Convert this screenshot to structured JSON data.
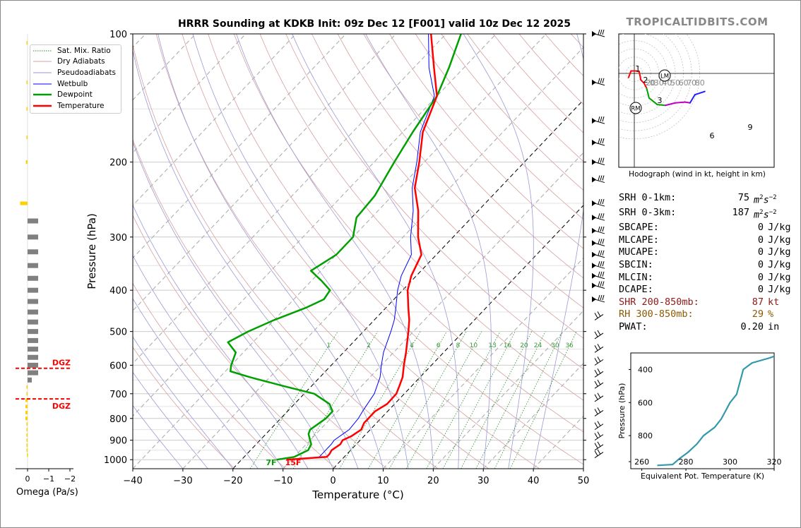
{
  "title": "HRRR Sounding at KDKB Init: 09z Dec 12 [F001] valid 10z Dec 12 2025",
  "brand": "TROPICALTIDBITS.COM",
  "stats": [
    {
      "label": "SRH 0-1km:",
      "value": "75",
      "unit": "m2s-2",
      "color": "#000"
    },
    {
      "label": "SRH 0-3km:",
      "value": "187",
      "unit": "m2s-2",
      "color": "#000"
    },
    {
      "label": "SBCAPE:",
      "value": "0",
      "unit": "J/kg",
      "color": "#000"
    },
    {
      "label": "MLCAPE:",
      "value": "0",
      "unit": "J/kg",
      "color": "#000"
    },
    {
      "label": "MUCAPE:",
      "value": "0",
      "unit": "J/kg",
      "color": "#000"
    },
    {
      "label": "SBCIN:",
      "value": "0",
      "unit": "J/kg",
      "color": "#000"
    },
    {
      "label": "MLCIN:",
      "value": "0",
      "unit": "J/kg",
      "color": "#000"
    },
    {
      "label": "DCAPE:",
      "value": "0",
      "unit": "J/kg",
      "color": "#000"
    },
    {
      "label": "SHR 200-850mb:",
      "value": "87",
      "unit": "kt",
      "color": "#8b1a1a"
    },
    {
      "label": "RH 300-850mb:",
      "value": "29",
      "unit": "%",
      "color": "#8b5a00"
    },
    {
      "label": "PWAT:",
      "value": "0.20",
      "unit": "in",
      "color": "#000"
    }
  ],
  "hodograph": {
    "caption": "Hodograph (wind in kt, height in km)",
    "ring_labels": [
      "0",
      "20",
      "30",
      "40",
      "50",
      "60",
      "70",
      "80"
    ],
    "height_labels": [
      "1",
      "2",
      "3",
      "6",
      "9"
    ],
    "markers": [
      "LM",
      "RM"
    ]
  },
  "omega": {
    "xlabel": "Omega (Pa/s)",
    "ticks": [
      "0",
      "−1",
      "−2"
    ],
    "dgz_label": "DGZ"
  },
  "chart_data": [
    {
      "type": "line",
      "name": "skew-t",
      "xlabel": "Temperature (°C)",
      "ylabel": "Pressure (hPa)",
      "xlim": [
        -40,
        50
      ],
      "ylim": [
        1050,
        100
      ],
      "y_log": true,
      "x_ticks": [
        "−40",
        "−30",
        "−20",
        "−10",
        "0",
        "10",
        "20",
        "30",
        "40",
        "50"
      ],
      "x_tick_values": [
        -40,
        -30,
        -20,
        -10,
        0,
        10,
        20,
        30,
        40,
        50
      ],
      "y_ticks": [
        "100",
        "200",
        "300",
        "400",
        "500",
        "600",
        "700",
        "800",
        "900",
        "1000"
      ],
      "y_tick_values": [
        100,
        200,
        300,
        400,
        500,
        600,
        700,
        800,
        900,
        1000
      ],
      "legend": [
        "Sat. Mix. Ratio",
        "Dry Adiabats",
        "Pseudoadiabats",
        "Wetbulb",
        "Dewpoint",
        "Temperature"
      ],
      "legend_placement": "top-left",
      "mixing_ratio_labels": [
        "1",
        "2",
        "4",
        "6",
        "8",
        "10",
        "13",
        "16",
        "20",
        "24",
        "30",
        "36"
      ],
      "surface_labels": {
        "dewpoint": "7F",
        "temperature": "15F"
      },
      "colors": {
        "temperature": "#ff0000",
        "dewpoint": "#00a000",
        "wetbulb": "#0000ff",
        "mixratio": "#2a8a2a",
        "dry": "#d6a0a0",
        "pseudo": "#9a9ad6",
        "isotherm_dash": "#000"
      },
      "series": [
        {
          "name": "Temperature",
          "points": [
            [
              1000,
              -11
            ],
            [
              985,
              -3.5
            ],
            [
              970,
              -3.5
            ],
            [
              950,
              -3.8
            ],
            [
              920,
              -3.2
            ],
            [
              900,
              -3.5
            ],
            [
              880,
              -2.5
            ],
            [
              850,
              -1.8
            ],
            [
              820,
              -2.5
            ],
            [
              800,
              -2.5
            ],
            [
              770,
              -2.5
            ],
            [
              740,
              -1.5
            ],
            [
              700,
              -1.6
            ],
            [
              670,
              -2.5
            ],
            [
              640,
              -3.5
            ],
            [
              600,
              -5.5
            ],
            [
              560,
              -7.5
            ],
            [
              500,
              -11
            ],
            [
              470,
              -13
            ],
            [
              440,
              -15.5
            ],
            [
              400,
              -19
            ],
            [
              370,
              -21
            ],
            [
              330,
              -23
            ],
            [
              300,
              -27
            ],
            [
              260,
              -32
            ],
            [
              230,
              -37
            ],
            [
              200,
              -41
            ],
            [
              170,
              -46
            ],
            [
              140,
              -50
            ],
            [
              120,
              -56
            ],
            [
              100,
              -63
            ]
          ]
        },
        {
          "name": "Wetbulb",
          "points": [
            [
              1000,
              -11
            ],
            [
              985,
              -5
            ],
            [
              950,
              -5
            ],
            [
              920,
              -5
            ],
            [
              900,
              -5.2
            ],
            [
              870,
              -4.6
            ],
            [
              850,
              -4.2
            ],
            [
              800,
              -4.5
            ],
            [
              770,
              -5
            ],
            [
              700,
              -6
            ],
            [
              640,
              -8
            ],
            [
              600,
              -10
            ],
            [
              560,
              -12
            ],
            [
              500,
              -14.5
            ],
            [
              470,
              -16
            ],
            [
              440,
              -18
            ],
            [
              400,
              -21
            ],
            [
              370,
              -23
            ],
            [
              330,
              -25
            ],
            [
              300,
              -28.5
            ],
            [
              260,
              -33
            ],
            [
              230,
              -37.5
            ],
            [
              200,
              -41.5
            ],
            [
              170,
              -46.5
            ],
            [
              140,
              -50.5
            ],
            [
              120,
              -57
            ],
            [
              100,
              -63.5
            ]
          ]
        },
        {
          "name": "Dewpoint",
          "points": [
            [
              1000,
              -13
            ],
            [
              985,
              -10
            ],
            [
              950,
              -8.5
            ],
            [
              920,
              -9
            ],
            [
              900,
              -10
            ],
            [
              870,
              -11.5
            ],
            [
              850,
              -12
            ],
            [
              800,
              -11
            ],
            [
              770,
              -11
            ],
            [
              740,
              -13
            ],
            [
              700,
              -18
            ],
            [
              670,
              -26
            ],
            [
              640,
              -34
            ],
            [
              620,
              -39
            ],
            [
              600,
              -40
            ],
            [
              560,
              -41.5
            ],
            [
              530,
              -45
            ],
            [
              500,
              -43
            ],
            [
              470,
              -40
            ],
            [
              440,
              -36
            ],
            [
              420,
              -34
            ],
            [
              400,
              -34.5
            ],
            [
              380,
              -38
            ],
            [
              360,
              -42
            ],
            [
              330,
              -40
            ],
            [
              300,
              -40
            ],
            [
              270,
              -43
            ],
            [
              240,
              -43.5
            ],
            [
              200,
              -46
            ],
            [
              170,
              -48
            ],
            [
              140,
              -50
            ],
            [
              120,
              -53
            ],
            [
              100,
              -57
            ]
          ]
        }
      ]
    },
    {
      "type": "bar",
      "name": "omega-profile",
      "xlabel": "Omega (Pa/s)",
      "xlim": [
        0.5,
        -2
      ],
      "bars": [
        {
          "p": 105,
          "omega": 0.05
        },
        {
          "p": 130,
          "omega": 0.05
        },
        {
          "p": 150,
          "omega": 0.05
        },
        {
          "p": 175,
          "omega": 0.05
        },
        {
          "p": 200,
          "omega": 0.08
        },
        {
          "p": 250,
          "omega": 0.35
        },
        {
          "p": 275,
          "omega": -0.5
        },
        {
          "p": 300,
          "omega": -0.5
        },
        {
          "p": 325,
          "omega": -0.5
        },
        {
          "p": 350,
          "omega": -0.5
        },
        {
          "p": 375,
          "omega": -0.5
        },
        {
          "p": 400,
          "omega": -0.5
        },
        {
          "p": 425,
          "omega": -0.5
        },
        {
          "p": 450,
          "omega": -0.5
        },
        {
          "p": 475,
          "omega": -0.5
        },
        {
          "p": 500,
          "omega": -0.5
        },
        {
          "p": 525,
          "omega": -0.5
        },
        {
          "p": 550,
          "omega": -0.5
        },
        {
          "p": 575,
          "omega": -0.5
        },
        {
          "p": 600,
          "omega": -0.5
        },
        {
          "p": 625,
          "omega": -0.5
        },
        {
          "p": 650,
          "omega": -0.2
        },
        {
          "p": 675,
          "omega": 0.05
        },
        {
          "p": 700,
          "omega": 0.05
        },
        {
          "p": 725,
          "omega": 0.1
        },
        {
          "p": 750,
          "omega": 0.1
        },
        {
          "p": 775,
          "omega": 0.1
        },
        {
          "p": 800,
          "omega": 0.1
        },
        {
          "p": 825,
          "omega": 0.05
        },
        {
          "p": 850,
          "omega": 0.05
        },
        {
          "p": 875,
          "omega": 0.05
        },
        {
          "p": 900,
          "omega": 0.05
        },
        {
          "p": 925,
          "omega": 0.05
        },
        {
          "p": 950,
          "omega": 0.05
        },
        {
          "p": 975,
          "omega": 0.03
        }
      ],
      "dgz": [
        {
          "p": 610,
          "label": "DGZ"
        },
        {
          "p": 720,
          "label": "DGZ"
        }
      ]
    },
    {
      "type": "line",
      "name": "equivalent-potential-temperature",
      "xlabel": "Equivalent Pot. Temperature (K)",
      "ylabel": "Pressure (hPa)",
      "xlim": [
        255,
        320
      ],
      "ylim": [
        1000,
        300
      ],
      "x_ticks": [
        "260",
        "280",
        "300",
        "320"
      ],
      "y_ticks": [
        "400",
        "600",
        "800"
      ],
      "points": [
        [
          980,
          267
        ],
        [
          975,
          274
        ],
        [
          940,
          277
        ],
        [
          900,
          281
        ],
        [
          850,
          285
        ],
        [
          800,
          288
        ],
        [
          750,
          293
        ],
        [
          700,
          296
        ],
        [
          650,
          298
        ],
        [
          600,
          300
        ],
        [
          550,
          303
        ],
        [
          500,
          304
        ],
        [
          450,
          305
        ],
        [
          400,
          306
        ],
        [
          380,
          308
        ],
        [
          360,
          310
        ],
        [
          330,
          318
        ],
        [
          310,
          322
        ]
      ]
    },
    {
      "type": "line",
      "name": "hodograph",
      "points_km": [
        {
          "h": 0.0,
          "u": -7,
          "v": -5
        },
        {
          "h": 0.5,
          "u": -4,
          "v": 3
        },
        {
          "h": 1.0,
          "u": 2,
          "v": 3
        },
        {
          "h": 1.5,
          "u": 6,
          "v": 2
        },
        {
          "h": 2.0,
          "u": 8,
          "v": -8
        },
        {
          "h": 2.5,
          "u": 12,
          "v": -12
        },
        {
          "h": 3.0,
          "u": 15,
          "v": -18
        },
        {
          "h": 4.0,
          "u": 18,
          "v": -30
        },
        {
          "h": 5.0,
          "u": 28,
          "v": -38
        },
        {
          "h": 6.0,
          "u": 38,
          "v": -39
        },
        {
          "h": 7.0,
          "u": 50,
          "v": -36
        },
        {
          "h": 8.0,
          "u": 62,
          "v": -35
        },
        {
          "h": 9.0,
          "u": 68,
          "v": -36
        },
        {
          "h": 10.0,
          "u": 74,
          "v": -26
        },
        {
          "h": 11.0,
          "u": 86,
          "v": -22
        }
      ],
      "storm_motion": {
        "LM": {
          "u": 18,
          "v": 1
        },
        "RM": {
          "u": 1,
          "v": -21
        }
      }
    }
  ]
}
